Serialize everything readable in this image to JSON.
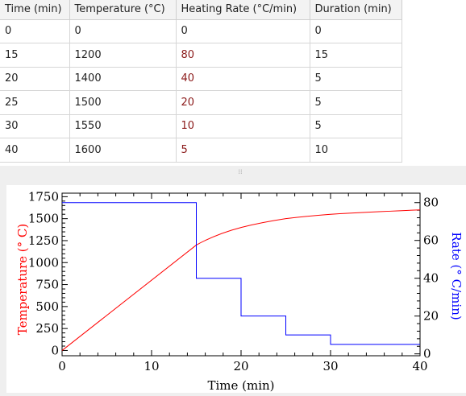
{
  "table": {
    "headers": [
      "Time (min)",
      "Temperature (°C)",
      "Heating Rate (°C/min)",
      "Duration (min)"
    ],
    "rows": [
      [
        "0",
        "0",
        "0",
        "0"
      ],
      [
        "15",
        "1200",
        "80",
        "15"
      ],
      [
        "20",
        "1400",
        "40",
        "5"
      ],
      [
        "25",
        "1500",
        "20",
        "5"
      ],
      [
        "30",
        "1550",
        "10",
        "5"
      ],
      [
        "40",
        "1600",
        "5",
        "10"
      ]
    ]
  },
  "chart_data": {
    "type": "line",
    "xlabel": "Time (min)",
    "ylabel_left": "Temperature (° C)",
    "ylabel_right": "Rate (° C/min)",
    "xlim": [
      0,
      40
    ],
    "ylim_left": [
      -60,
      1790
    ],
    "ylim_right": [
      -1,
      85
    ],
    "x_ticks": [
      0,
      10,
      20,
      30,
      40
    ],
    "y_left_ticks": [
      0,
      250,
      500,
      750,
      1000,
      1250,
      1500,
      1750
    ],
    "y_right_ticks": [
      0,
      20,
      40,
      60,
      80
    ],
    "series": [
      {
        "axis": "left",
        "color": "#ff0000",
        "curve": "smooth",
        "x": [
          0,
          15,
          20,
          25,
          30,
          40
        ],
        "y": [
          0,
          1200,
          1400,
          1500,
          1550,
          1600
        ]
      },
      {
        "axis": "right",
        "color": "#0000ff",
        "curve": "step",
        "x": [
          0,
          15,
          20,
          25,
          30,
          40
        ],
        "y": [
          80,
          40,
          20,
          10,
          5,
          5
        ]
      }
    ],
    "grid": false
  }
}
